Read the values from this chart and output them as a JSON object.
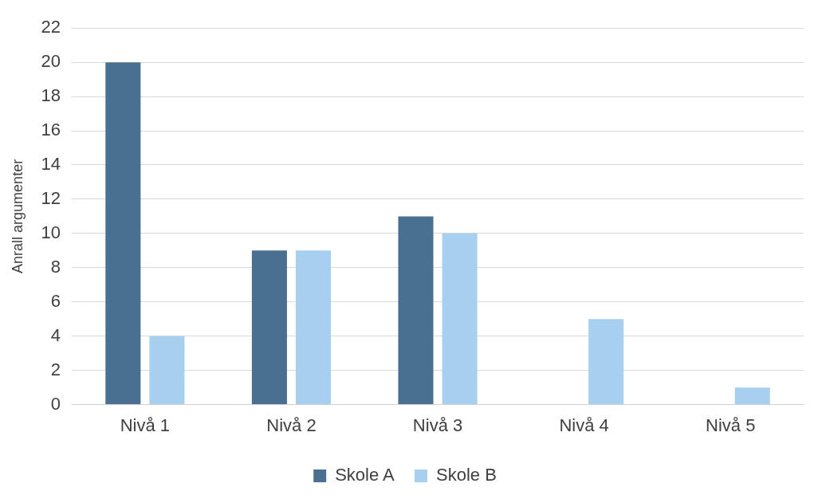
{
  "chart_data": {
    "type": "bar",
    "ylabel": "Anrall argumenter",
    "categories": [
      "Nivå 1",
      "Nivå 2",
      "Nivå 3",
      "Nivå 4",
      "Nivå 5"
    ],
    "series": [
      {
        "name": "Skole A",
        "color": "#4a7091",
        "values": [
          20,
          9,
          11,
          0,
          0
        ]
      },
      {
        "name": "Skole B",
        "color": "#a6cff0",
        "values": [
          4,
          9,
          10,
          5,
          1
        ]
      }
    ],
    "ylim": [
      0,
      22
    ],
    "yticks": [
      0,
      2,
      4,
      6,
      8,
      10,
      12,
      14,
      16,
      18,
      20,
      22
    ],
    "grid": "y",
    "legend": "bottom"
  }
}
